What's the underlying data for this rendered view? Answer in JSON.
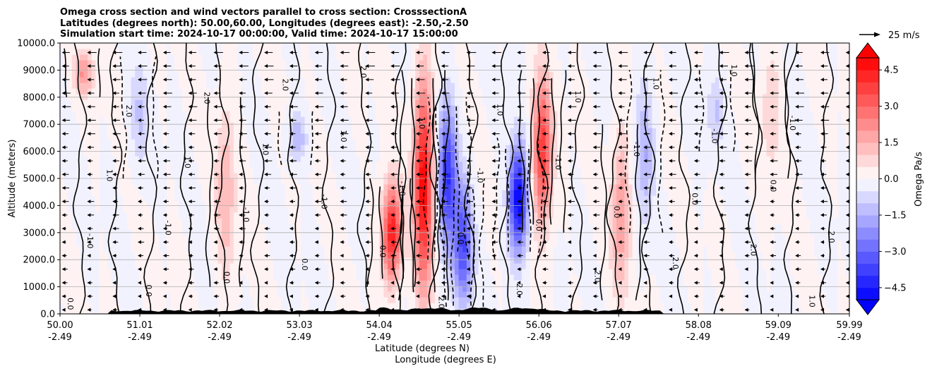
{
  "chart_data": {
    "type": "heatmap",
    "subtype": "filled contour cross-section with line contours and wind vectors",
    "title_lines": [
      "Omega cross section and wind vectors parallel to cross section: CrosssectionA",
      "Latitudes (degrees north): 50.00,60.00, Longitudes (degrees east): -2.50,-2.50",
      "Simulation start time: 2024-10-17 00:00:00, Valid time: 2024-10-17 15:00:00"
    ],
    "ylabel": "Altitude (meters)",
    "xlabel_lines": [
      "Latitude (degrees N)",
      "Longitude (degrees E)"
    ],
    "ylim": [
      0,
      10000
    ],
    "yticks": [
      0,
      1000,
      2000,
      3000,
      4000,
      5000,
      6000,
      7000,
      8000,
      9000,
      10000
    ],
    "ytick_labels": [
      "0.0",
      "1000.0",
      "2000.0",
      "3000.0",
      "4000.0",
      "5000.0",
      "6000.0",
      "7000.0",
      "8000.0",
      "9000.0",
      "10000.0"
    ],
    "xlim": [
      50.0,
      59.99
    ],
    "xticks": [
      50.0,
      51.01,
      52.02,
      53.03,
      54.04,
      55.05,
      56.06,
      57.07,
      58.08,
      59.09,
      59.99
    ],
    "xtick_labels": [
      [
        "50.00",
        "-2.49"
      ],
      [
        "51.01",
        "-2.49"
      ],
      [
        "52.02",
        "-2.49"
      ],
      [
        "53.03",
        "-2.49"
      ],
      [
        "54.04",
        "-2.49"
      ],
      [
        "55.05",
        "-2.49"
      ],
      [
        "56.06",
        "-2.49"
      ],
      [
        "57.07",
        "-2.49"
      ],
      [
        "58.08",
        "-2.49"
      ],
      [
        "59.09",
        "-2.49"
      ],
      [
        "59.99",
        "-2.49"
      ]
    ],
    "grid": true,
    "colorbar": {
      "label": "Omega Pa/s",
      "vmin": -5.0,
      "vmax": 5.0,
      "step": 0.5,
      "ticks": [
        -4.5,
        -3.0,
        -1.5,
        0.0,
        1.5,
        3.0,
        4.5
      ],
      "tick_labels": [
        "−4.5",
        "−3.0",
        "−1.5",
        "0.0",
        "1.5",
        "3.0",
        "4.5"
      ],
      "cmap": "bwr",
      "extend": "both"
    },
    "quiver_key": {
      "label": "25 m/s",
      "speed": 25
    },
    "wind_direction": "mostly toward lower latitude (leftward) in upper levels; weak near surface",
    "contour_levels": [
      -1.0,
      0.0,
      1.0,
      2.0
    ],
    "contour_labels_sample": [
      "0.0",
      "-1.0",
      "1.0",
      "2.0"
    ],
    "features": [
      {
        "lat": 50.3,
        "zmin": 8000,
        "zmax": 9800,
        "omega_peak": 2.0,
        "sign": "positive"
      },
      {
        "lat": 51.0,
        "zmin": 5000,
        "zmax": 9500,
        "omega_peak": -1.0,
        "sign": "negative"
      },
      {
        "lat": 52.1,
        "zmin": 1000,
        "zmax": 8000,
        "omega_peak": 1.5,
        "sign": "positive"
      },
      {
        "lat": 53.0,
        "zmin": 5500,
        "zmax": 7500,
        "omega_peak": -1.5,
        "sign": "negative"
      },
      {
        "lat": 54.2,
        "zmin": 1000,
        "zmax": 5000,
        "omega_peak": 4.5,
        "sign": "positive"
      },
      {
        "lat": 54.6,
        "zmin": 500,
        "zmax": 9000,
        "omega_peak": 5.0,
        "sign": "positive"
      },
      {
        "lat": 54.9,
        "zmin": 2000,
        "zmax": 8000,
        "omega_peak": -4.0,
        "sign": "negative"
      },
      {
        "lat": 55.1,
        "zmin": 0,
        "zmax": 5000,
        "omega_peak": -3.5,
        "sign": "negative"
      },
      {
        "lat": 55.8,
        "zmin": 2000,
        "zmax": 6500,
        "omega_peak": -5.0,
        "sign": "negative"
      },
      {
        "lat": 56.1,
        "zmin": 3000,
        "zmax": 9000,
        "omega_peak": 4.0,
        "sign": "positive"
      },
      {
        "lat": 57.1,
        "zmin": 500,
        "zmax": 7000,
        "omega_peak": 2.0,
        "sign": "positive"
      },
      {
        "lat": 57.4,
        "zmin": 3000,
        "zmax": 9000,
        "omega_peak": -1.5,
        "sign": "negative"
      },
      {
        "lat": 58.3,
        "zmin": 6000,
        "zmax": 9000,
        "omega_peak": -1.0,
        "sign": "negative"
      },
      {
        "lat": 59.0,
        "zmin": 5000,
        "zmax": 10000,
        "omega_peak": 1.0,
        "sign": "positive"
      }
    ]
  }
}
